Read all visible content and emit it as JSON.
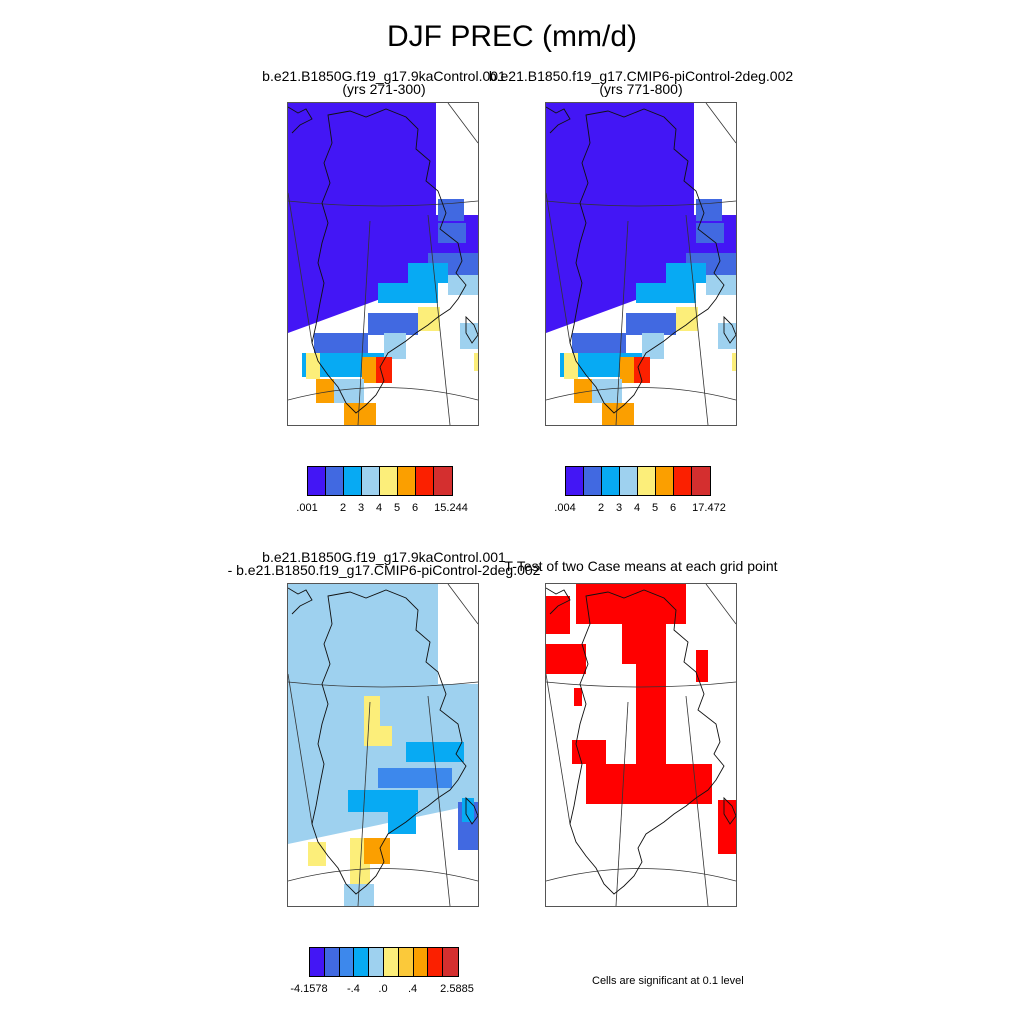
{
  "title": "DJF PREC (mm/d)",
  "panels": {
    "case1": {
      "line1": "b.e21.B1850G.f19_g17.9kaControl.001",
      "line2": "(yrs 271-300)"
    },
    "case2": {
      "line1": "b.e21.B1850.f19_g17.CMIP6-piControl-2deg.002",
      "line2": "(yrs 771-800)"
    },
    "diff": {
      "line1": "b.e21.B1850G.f19_g17.9kaControl.001",
      "line2": "- b.e21.B1850.f19_g17.CMIP6-piControl-2deg.002"
    },
    "ttest": {
      "line1": "T-Test of two Case means at each grid point"
    }
  },
  "colorbars": {
    "case1": {
      "colors": [
        "#4316f5",
        "#4169e1",
        "#07aaf3",
        "#9ed1ef",
        "#fcee7a",
        "#fb9f00",
        "#fb2000",
        "#d42f2f"
      ],
      "labels": [
        ".001",
        "2",
        "3",
        "4",
        "5",
        "6",
        "15.244"
      ]
    },
    "case2": {
      "colors": [
        "#4316f5",
        "#4169e1",
        "#07aaf3",
        "#9ed1ef",
        "#fcee7a",
        "#fb9f00",
        "#fb2000",
        "#d42f2f"
      ],
      "labels": [
        ".004",
        "2",
        "3",
        "4",
        "5",
        "6",
        "17.472"
      ]
    },
    "diff": {
      "colors": [
        "#4316f5",
        "#4169e1",
        "#3d88ec",
        "#07aaf3",
        "#9ed1ef",
        "#fcee7a",
        "#fbc93a",
        "#fb9f00",
        "#fb2000",
        "#d42f2f"
      ],
      "labels": [
        "-4.1578",
        "-.4",
        ".0",
        ".4",
        "2.5885"
      ]
    }
  },
  "ttest_note": "Cells are significant at 0.1 level",
  "colors": {
    "significant": "#ff0000"
  }
}
